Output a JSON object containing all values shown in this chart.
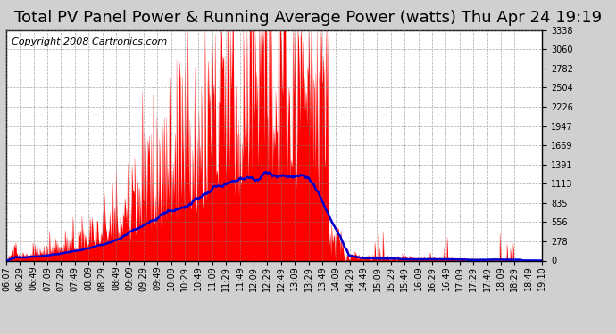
{
  "title": "Total PV Panel Power & Running Average Power (watts) Thu Apr 24 19:19",
  "copyright": "Copyright 2008 Cartronics.com",
  "background_color": "#d0d0d0",
  "plot_bg_color": "#ffffff",
  "grid_color": "#808080",
  "fill_color": "#ff0000",
  "line_color": "#0000cc",
  "ymin": 0.0,
  "ymax": 3338.4,
  "yticks": [
    0.0,
    278.2,
    556.4,
    834.6,
    1112.8,
    1391.0,
    1669.2,
    1947.4,
    2225.6,
    2503.8,
    2782.0,
    3060.2,
    3338.4
  ],
  "xtick_labels": [
    "06:07",
    "06:29",
    "06:49",
    "07:09",
    "07:29",
    "07:49",
    "08:09",
    "08:29",
    "08:49",
    "09:09",
    "09:29",
    "09:49",
    "10:09",
    "10:29",
    "10:49",
    "11:09",
    "11:29",
    "11:49",
    "12:09",
    "12:29",
    "12:49",
    "13:09",
    "13:29",
    "13:49",
    "14:09",
    "14:29",
    "14:49",
    "15:09",
    "15:29",
    "15:49",
    "16:09",
    "16:29",
    "16:49",
    "17:09",
    "17:29",
    "17:49",
    "18:09",
    "18:29",
    "18:49",
    "19:10"
  ],
  "title_fontsize": 13,
  "copyright_fontsize": 8,
  "tick_fontsize": 7
}
